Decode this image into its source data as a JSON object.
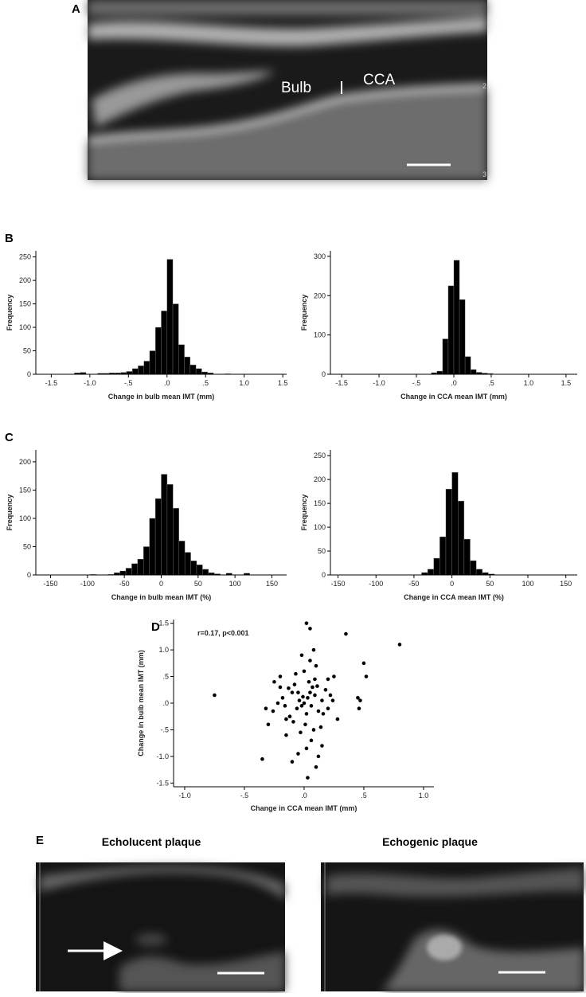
{
  "panel_labels": [
    "A",
    "B",
    "C",
    "D",
    "E"
  ],
  "images": {
    "A": {
      "labels": [
        "Bulb",
        "CCA"
      ],
      "depth_labels": [
        "2",
        "3"
      ]
    },
    "E": {
      "titles": [
        "Echolucent plaque",
        "Echogenic plaque"
      ]
    }
  },
  "chart_data": [
    {
      "type": "histogram",
      "x_label": "Change in bulb mean IMT (mm)",
      "y_label": "Frequency",
      "bins": [
        -1.5,
        -1.425,
        -1.35,
        -1.275,
        -1.2,
        -1.125,
        -1.05,
        -0.975,
        -0.9,
        -0.825,
        -0.75,
        -0.675,
        -0.6,
        -0.525,
        -0.45,
        -0.375,
        -0.3,
        -0.225,
        -0.15,
        -0.075,
        0,
        0.075,
        0.15,
        0.225,
        0.3,
        0.375,
        0.45,
        0.525,
        0.6,
        0.675,
        0.75,
        0.825,
        0.9,
        0.975,
        1.05,
        1.125,
        1.2,
        1.275,
        1.35,
        1.425,
        1.5
      ],
      "counts": [
        0,
        0,
        0,
        0,
        3,
        4,
        0,
        0,
        2,
        2,
        3,
        3,
        4,
        6,
        12,
        18,
        28,
        50,
        100,
        135,
        245,
        150,
        63,
        37,
        20,
        12,
        5,
        3,
        0,
        0,
        1,
        0,
        0,
        0,
        0,
        0,
        0,
        0,
        0,
        0
      ],
      "color": "#000000",
      "xlim": [
        -1.7,
        1.55
      ],
      "ylim": [
        0,
        263
      ],
      "xticks": [
        -1.5,
        {
          "value": -1.0,
          "label": "-1.0"
        },
        {
          "value": -0.5,
          "label": "-.5"
        },
        {
          "value": 0,
          "label": ".0"
        },
        {
          "value": 0.5,
          "label": ".5"
        },
        {
          "value": 1.0,
          "label": "1.0"
        },
        1.5
      ],
      "yticks": [
        0,
        50,
        100,
        150,
        200,
        250
      ]
    },
    {
      "type": "histogram",
      "x_label": "Change in CCA mean IMT (mm)",
      "y_label": "Frequency",
      "bins": [
        -1.5,
        -1.425,
        -1.35,
        -1.275,
        -1.2,
        -1.125,
        -1.05,
        -0.975,
        -0.9,
        -0.825,
        -0.75,
        -0.675,
        -0.6,
        -0.525,
        -0.45,
        -0.375,
        -0.3,
        -0.225,
        -0.15,
        -0.075,
        0,
        0.075,
        0.15,
        0.225,
        0.3,
        0.375,
        0.45,
        0.525,
        0.6,
        0.675,
        0.75,
        0.825,
        0.9,
        0.975,
        1.05,
        1.125,
        1.2,
        1.275,
        1.35,
        1.425,
        1.5
      ],
      "counts": [
        0,
        0,
        0,
        0,
        0,
        0,
        0,
        0,
        0,
        0,
        0,
        0,
        0,
        0,
        0,
        0,
        4,
        8,
        90,
        225,
        290,
        190,
        45,
        12,
        5,
        3,
        2,
        0,
        0,
        0,
        0,
        0,
        0,
        0,
        0,
        0,
        0,
        0,
        0,
        0
      ],
      "color": "#000000",
      "xlim": [
        -1.65,
        1.65
      ],
      "ylim": [
        0,
        314
      ],
      "xticks": [
        -1.5,
        {
          "value": -1.0,
          "label": "-1.0"
        },
        {
          "value": -0.5,
          "label": "-.5"
        },
        {
          "value": 0,
          "label": ".0"
        },
        {
          "value": 0.5,
          "label": ".5"
        },
        {
          "value": 1.0,
          "label": "1.0"
        },
        1.5
      ],
      "yticks": [
        0,
        100,
        200,
        300
      ]
    },
    {
      "type": "histogram",
      "x_label": "Change in bulb mean IMT (%)",
      "y_label": "Frequency",
      "bins": [
        -160,
        -152,
        -144,
        -136,
        -128,
        -120,
        -112,
        -104,
        -96,
        -88,
        -80,
        -72,
        -64,
        -56,
        -48,
        -40,
        -32,
        -24,
        -16,
        -8,
        0,
        8,
        16,
        24,
        32,
        40,
        48,
        56,
        64,
        72,
        80,
        88,
        96,
        104,
        112,
        120,
        128,
        136,
        144,
        152,
        160
      ],
      "counts": [
        0,
        0,
        0,
        0,
        0,
        0,
        0,
        0,
        1,
        0,
        0,
        1,
        4,
        7,
        12,
        20,
        28,
        50,
        100,
        135,
        178,
        160,
        118,
        60,
        40,
        25,
        18,
        10,
        4,
        2,
        0,
        3,
        0,
        0,
        3,
        0,
        0,
        0,
        0,
        0
      ],
      "color": "#000000",
      "xlim": [
        -170,
        170
      ],
      "ylim": [
        0,
        221
      ],
      "xticks": [
        -150,
        -100,
        -50,
        0,
        50,
        100,
        150
      ],
      "yticks": [
        0,
        50,
        100,
        150,
        200
      ]
    },
    {
      "type": "histogram",
      "x_label": "Change in CCA mean IMT (%)",
      "y_label": "Frequency",
      "bins": [
        -160,
        -152,
        -144,
        -136,
        -128,
        -120,
        -112,
        -104,
        -96,
        -88,
        -80,
        -72,
        -64,
        -56,
        -48,
        -40,
        -32,
        -24,
        -16,
        -8,
        0,
        8,
        16,
        24,
        32,
        40,
        48,
        56,
        64,
        72,
        80,
        88,
        96,
        104,
        112,
        120,
        128,
        136,
        144,
        152,
        160
      ],
      "counts": [
        0,
        0,
        0,
        0,
        0,
        0,
        0,
        0,
        0,
        0,
        0,
        0,
        0,
        0,
        0,
        5,
        12,
        35,
        80,
        180,
        215,
        155,
        75,
        30,
        12,
        5,
        2,
        0,
        0,
        0,
        0,
        0,
        0,
        0,
        0,
        0,
        0,
        0,
        0,
        0
      ],
      "color": "#000000",
      "xlim": [
        -160,
        165
      ],
      "ylim": [
        0,
        262
      ],
      "xticks": [
        -150,
        -100,
        -50,
        0,
        50,
        100,
        150
      ],
      "yticks": [
        0,
        50,
        100,
        150,
        200,
        250
      ]
    },
    {
      "type": "scatter",
      "x_label": "Change in CCA mean IMT (mm)",
      "y_label": "Change in bulb mean IMT (mm)",
      "annotation": "r=0.17, p<0.001",
      "color": "#000000",
      "x": [
        -0.75,
        0.8,
        0.35,
        0.5,
        0.52,
        0.45,
        0.47,
        0.46,
        -0.35,
        0.02,
        0.05,
        0.03,
        0.08,
        -0.3,
        -0.32,
        -0.25,
        -0.2,
        0.2,
        0.25,
        0.28,
        0.15,
        -0.05,
        0.1,
        -0.1,
        0.12,
        -0.15,
        0.05,
        -0.02,
        0.1,
        0,
        -0.08,
        0.07,
        0,
        0.03,
        -0.04,
        0.06,
        -0.06,
        0.02,
        0.09,
        -0.1,
        0.12,
        -0.12,
        0.15,
        -0.18,
        0.18,
        -0.15,
        0.01,
        0.04,
        -0.03,
        0.08,
        0.2,
        -0.22,
        0.22,
        -0.05,
        0.05,
        -0.02,
        0.11,
        -0.09,
        0.14,
        -0.13,
        0.06,
        -0.07,
        0.02,
        -0.01,
        0.16,
        -0.16,
        0.09,
        -0.2,
        0.24,
        -0.26
      ],
      "y": [
        0.15,
        1.1,
        1.3,
        0.75,
        0.5,
        0.1,
        0.05,
        -0.1,
        -1.05,
        1.5,
        1.4,
        -1.4,
        1.0,
        -0.4,
        -0.1,
        0.4,
        0.5,
        0.45,
        0.5,
        -0.3,
        -0.8,
        -0.95,
        -1.2,
        -1.1,
        -1.0,
        -0.6,
        0.8,
        0.9,
        0.7,
        0.6,
        0.35,
        0.3,
        0,
        0.1,
        0.05,
        -0.05,
        -0.1,
        -0.2,
        0.15,
        0.2,
        -0.15,
        -0.25,
        0.05,
        0.1,
        0.25,
        -0.3,
        -0.4,
        0.4,
        -0.55,
        -0.5,
        -0.1,
        0,
        0.15,
        0.2,
        0.2,
        -0.05,
        0.32,
        -0.35,
        -0.45,
        0.28,
        -0.7,
        0.55,
        -0.85,
        0.12,
        -0.2,
        -0.05,
        0.45,
        0.3,
        0.05,
        -0.15
      ],
      "xlim": [
        -1.093,
        1.087
      ],
      "ylim": [
        -1.57,
        1.57
      ],
      "xticks": [
        {
          "value": -1.0,
          "label": "-1.0"
        },
        {
          "value": -0.5,
          "label": "-.5"
        },
        {
          "value": 0,
          "label": ".0"
        },
        {
          "value": 0.5,
          "label": ".5"
        },
        {
          "value": 1.0,
          "label": "1.0"
        }
      ],
      "yticks": [
        -1.5,
        {
          "value": -1.0,
          "label": "-1.0"
        },
        {
          "value": -0.5,
          "label": "-.5"
        },
        {
          "value": 0,
          "label": ".0"
        },
        {
          "value": 0.5,
          "label": ".5"
        },
        {
          "value": 1.0,
          "label": "1.0"
        },
        1.5
      ]
    }
  ]
}
